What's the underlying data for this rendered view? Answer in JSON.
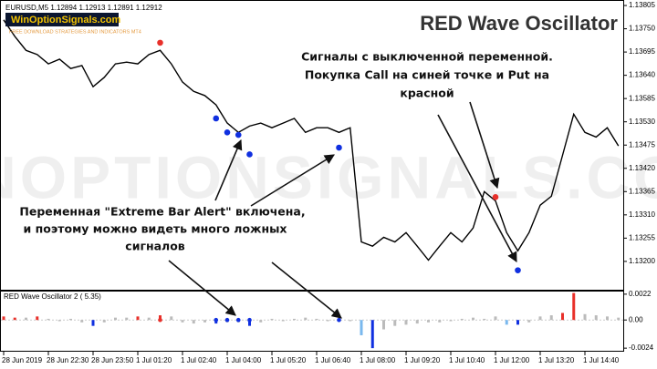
{
  "chart_data": [
    {
      "type": "line",
      "title": "RED Wave Oscillator",
      "symbol_info": "EURUSD,M5  1.12894 1.12913 1.12891 1.12912",
      "logo": "WinOptionSignals.com",
      "logo_subtitle": "FREE DOWNLOAD STRATEGIES AND INDICATORS MT4",
      "watermark": "WINOPTIONSIGNALS.COM",
      "annotations": [
        "Сигналы с выключенной переменной.",
        "Покупка Call на синей точке и Put на",
        "красной",
        "Переменная \"Extreme Bar Alert\" включена,",
        "и поэтому можно видеть много ложных",
        "сигналов"
      ],
      "categories": [
        "28 Jun 2019",
        null,
        null,
        null,
        "28 Jun 22:30",
        null,
        null,
        null,
        "28 Jun 23:50",
        null,
        null,
        null,
        "1 Jul 01:20",
        null,
        null,
        null,
        "1 Jul 02:40",
        null,
        null,
        null,
        "1 Jul 04:00",
        null,
        null,
        null,
        "1 Jul 05:20",
        null,
        null,
        null,
        "1 Jul 06:40",
        null,
        null,
        null,
        "1 Jul 08:00",
        null,
        null,
        null,
        "1 Jul 09:20",
        null,
        null,
        null,
        "1 Jul 10:40",
        null,
        null,
        null,
        "1 Jul 12:00",
        null,
        null,
        null,
        "1 Jul 13:20",
        null,
        null,
        null,
        "1 Jul 14:40",
        null,
        null,
        null
      ],
      "series": [
        {
          "color": "#000000",
          "values": [
            1.13771,
            1.13732,
            1.13699,
            1.13689,
            1.13667,
            1.13678,
            1.13656,
            1.13663,
            1.13613,
            1.13635,
            1.13667,
            1.13671,
            1.13667,
            1.13689,
            1.13699,
            1.13667,
            1.13624,
            1.13602,
            1.13592,
            1.1357,
            1.13527,
            1.13505,
            1.1352,
            1.13527,
            1.13516,
            1.13527,
            1.13538,
            1.13505,
            1.13516,
            1.13516,
            1.13505,
            1.13516,
            1.13246,
            1.13236,
            1.13257,
            1.13246,
            1.13268,
            1.13236,
            1.13203,
            1.13236,
            1.13268,
            1.13246,
            1.13279,
            1.13365,
            1.13343,
            1.13268,
            1.13225,
            1.13268,
            1.13333,
            1.13354,
            1.13451,
            1.13548,
            1.13505,
            1.13494,
            1.13516,
            1.13473
          ]
        },
        {
          "type": "scatter",
          "color": "#e8302a",
          "values": [
            null,
            null,
            null,
            null,
            null,
            null,
            null,
            null,
            null,
            null,
            null,
            null,
            null,
            null,
            1.13717,
            null,
            null,
            null,
            null,
            null,
            null,
            null,
            null,
            null,
            null,
            null,
            null,
            null,
            null,
            null,
            null,
            null,
            null,
            null,
            null,
            null,
            null,
            null,
            null,
            null,
            null,
            null,
            null,
            null,
            1.13352,
            null,
            null,
            null,
            null,
            null,
            null,
            null,
            null,
            null,
            null,
            null
          ]
        },
        {
          "type": "scatter",
          "color": "#1030e0",
          "values": [
            null,
            null,
            null,
            null,
            null,
            null,
            null,
            null,
            null,
            null,
            null,
            null,
            null,
            null,
            null,
            null,
            null,
            null,
            null,
            1.13538,
            1.13505,
            1.13499,
            1.13453,
            null,
            null,
            null,
            null,
            null,
            null,
            null,
            1.13469,
            null,
            null,
            null,
            null,
            null,
            null,
            null,
            null,
            null,
            null,
            null,
            null,
            null,
            null,
            null,
            1.13179,
            null,
            null,
            null,
            null,
            null,
            null,
            null,
            null,
            null
          ]
        }
      ],
      "ylim": [
        1.13133,
        1.13818
      ],
      "yticks": [
        1.13805,
        {
          "value": 1.1375,
          "label": "1.13750"
        },
        1.13695,
        {
          "value": 1.1364,
          "label": "1.13640"
        },
        1.13585,
        {
          "value": 1.1353,
          "label": "1.13530"
        },
        1.13475,
        {
          "value": 1.1342,
          "label": "1.13420"
        },
        1.13365,
        {
          "value": 1.1331,
          "label": "1.13310"
        },
        1.13255,
        {
          "value": 1.132,
          "label": "1.13200"
        }
      ]
    },
    {
      "type": "bar",
      "title": "RED Wave Oscillator 2 ( 5.35)",
      "values": [
        0.0003,
        0.0002,
        0.0002,
        0.0003,
        0.0001,
        -0.0001,
        0.0001,
        -0.0002,
        -0.0005,
        -0.0002,
        0.0002,
        0.0002,
        0.0003,
        0.0002,
        0.0004,
        0.0003,
        -0.0002,
        -0.0003,
        -0.0002,
        -0.0003,
        -0.0002,
        -0.0002,
        -0.0005,
        -0.0002,
        0.0001,
        -0.0001,
        0.0001,
        0.0002,
        0.0001,
        -0.0001,
        0.0001,
        -0.0001,
        -0.0013,
        -0.0024,
        -0.0008,
        -0.0005,
        -0.0004,
        -0.0003,
        -0.0002,
        -0.0002,
        -0.0001,
        0.0001,
        0.0002,
        0.0001,
        0.0003,
        -0.0004,
        -0.0004,
        -0.0002,
        0.0003,
        0.0004,
        0.0006,
        0.0023,
        0.0005,
        0.0004,
        0.0003,
        0.0002
      ],
      "colors": [
        "#e8302a",
        "#e8302a",
        "#bbbbbb",
        "#e8302a",
        "#bbbbbb",
        "#bbbbbb",
        "#bbbbbb",
        "#bbbbbb",
        "#1030e0",
        "#bbbbbb",
        "#bbbbbb",
        "#bbbbbb",
        "#e8302a",
        "#bbbbbb",
        "#e8302a",
        "#bbbbbb",
        "#bbbbbb",
        "#bbbbbb",
        "#bbbbbb",
        "#1030e0",
        "#bbbbbb",
        "#bbbbbb",
        "#1030e0",
        "#bbbbbb",
        "#bbbbbb",
        "#bbbbbb",
        "#bbbbbb",
        "#bbbbbb",
        "#bbbbbb",
        "#bbbbbb",
        "#bbbbbb",
        "#bbbbbb",
        "#7ab8ee",
        "#1030e0",
        "#bbbbbb",
        "#bbbbbb",
        "#bbbbbb",
        "#bbbbbb",
        "#bbbbbb",
        "#bbbbbb",
        "#bbbbbb",
        "#bbbbbb",
        "#bbbbbb",
        "#bbbbbb",
        "#bbbbbb",
        "#7ab8ee",
        "#1030e0",
        "#bbbbbb",
        "#bbbbbb",
        "#bbbbbb",
        "#e8302a",
        "#e8302a",
        "#bbbbbb",
        "#bbbbbb",
        "#bbbbbb",
        "#bbbbbb"
      ],
      "series": [
        {
          "type": "scatter",
          "color": "#e8302a",
          "values": [
            null,
            null,
            null,
            null,
            null,
            null,
            null,
            null,
            null,
            null,
            null,
            null,
            null,
            null,
            0,
            null,
            null,
            null,
            null,
            null,
            null,
            null,
            null,
            null,
            null,
            null,
            null,
            null,
            null,
            null,
            null,
            null,
            null,
            null,
            null,
            null,
            null,
            null,
            null,
            null,
            null,
            null,
            null,
            null,
            null,
            null,
            null,
            null,
            null,
            null,
            null,
            null,
            null,
            null,
            null,
            null
          ]
        },
        {
          "type": "scatter",
          "color": "#1030e0",
          "values": [
            null,
            null,
            null,
            null,
            null,
            null,
            null,
            null,
            null,
            null,
            null,
            null,
            null,
            null,
            null,
            null,
            null,
            null,
            null,
            0,
            0,
            0,
            0,
            null,
            null,
            null,
            null,
            null,
            null,
            null,
            0,
            null,
            null,
            null,
            null,
            null,
            null,
            null,
            null,
            null,
            null,
            null,
            null,
            null,
            null,
            null,
            null,
            null,
            null,
            null,
            null,
            null,
            null,
            null,
            null,
            null
          ]
        }
      ],
      "ylim": [
        -0.0027,
        0.0025
      ],
      "yticks": [
        0.0022,
        {
          "value": 0,
          "label": "0.00"
        },
        -0.0024
      ]
    }
  ]
}
